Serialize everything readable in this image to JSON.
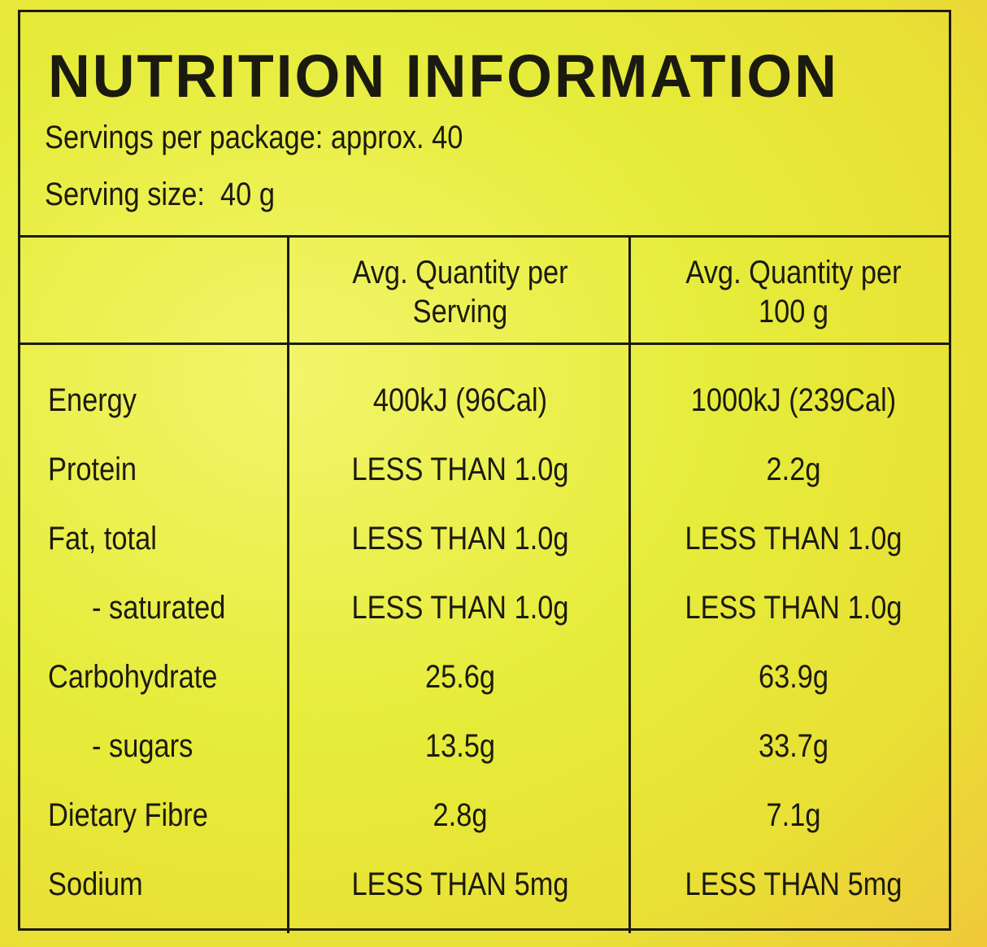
{
  "title": "NUTRITION INFORMATION",
  "servings_per_package": "Servings per package: approx. 40",
  "serving_size": "Serving size:  40 g",
  "table": {
    "headers": [
      "",
      "Avg. Quantity per Serving",
      "Avg. Quantity per 100 g"
    ],
    "rows": [
      [
        "Energy",
        "400kJ (96Cal)",
        "1000kJ (239Cal)"
      ],
      [
        "Protein",
        "LESS THAN 1.0g",
        "2.2g"
      ],
      [
        "Fat, total",
        "LESS THAN 1.0g",
        "LESS THAN 1.0g"
      ],
      [
        "- saturated",
        "LESS THAN 1.0g",
        "LESS THAN 1.0g"
      ],
      [
        "Carbohydrate",
        "25.6g",
        "63.9g"
      ],
      [
        "- sugars",
        "13.5g",
        "33.7g"
      ],
      [
        "Dietary Fibre",
        "2.8g",
        "7.1g"
      ],
      [
        "Sodium",
        "LESS THAN 5mg",
        "LESS THAN 5mg"
      ]
    ]
  }
}
